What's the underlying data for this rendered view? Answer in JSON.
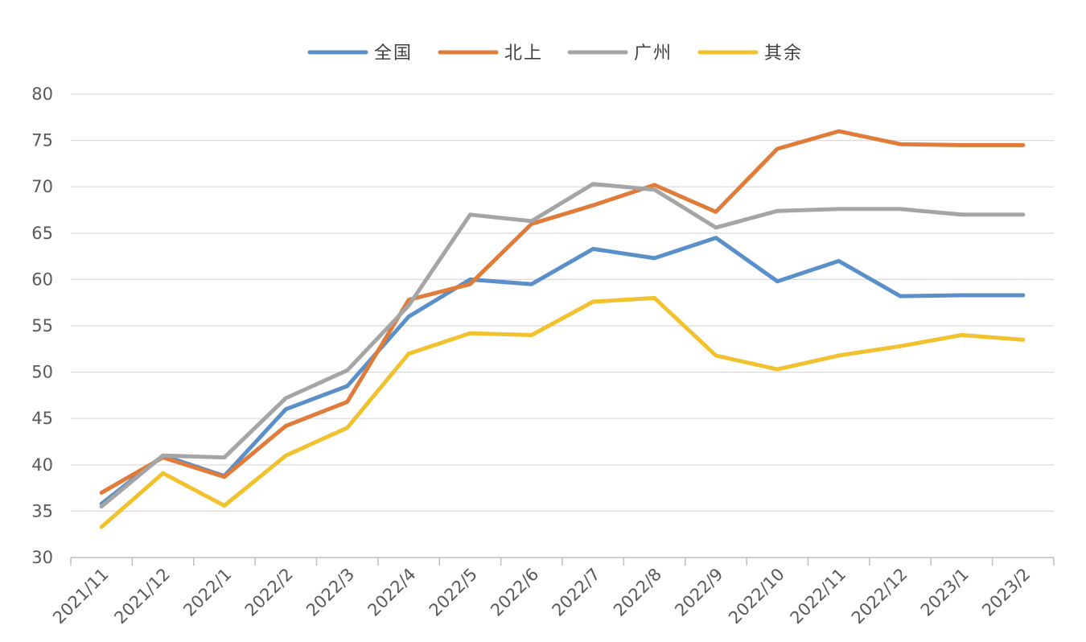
{
  "chart_data": {
    "type": "line",
    "title": "",
    "xlabel": "",
    "ylabel": "",
    "categories": [
      "2021/11",
      "2021/12",
      "2022/1",
      "2022/2",
      "2022/3",
      "2022/4",
      "2022/5",
      "2022/6",
      "2022/7",
      "2022/8",
      "2022/9",
      "2022/10",
      "2022/11",
      "2022/12",
      "2023/1",
      "2023/2"
    ],
    "ylim": [
      30,
      80
    ],
    "yticks": [
      "30",
      "35",
      "40",
      "45",
      "50",
      "55",
      "60",
      "65",
      "70",
      "75",
      "80"
    ],
    "grid": true,
    "legend_position": "top",
    "series": [
      {
        "name": "全国",
        "color": "#5B8FC9",
        "values": [
          35.8,
          41.0,
          38.8,
          46.0,
          48.5,
          56.0,
          60.0,
          59.5,
          63.3,
          62.3,
          64.5,
          59.8,
          62.0,
          58.2,
          58.3,
          58.3
        ]
      },
      {
        "name": "北上",
        "color": "#E07B39",
        "values": [
          37.0,
          40.8,
          38.7,
          44.2,
          46.8,
          57.8,
          59.5,
          66.0,
          68.0,
          70.2,
          67.3,
          74.1,
          76.0,
          74.6,
          74.5,
          74.5
        ]
      },
      {
        "name": "广州",
        "color": "#A5A5A5",
        "values": [
          35.5,
          41.0,
          40.8,
          47.2,
          50.2,
          57.2,
          67.0,
          66.3,
          70.3,
          69.7,
          65.6,
          67.4,
          67.6,
          67.6,
          67.0,
          67.0
        ]
      },
      {
        "name": "其余",
        "color": "#F2C12E",
        "values": [
          33.3,
          39.1,
          35.6,
          41.0,
          44.0,
          52.0,
          54.2,
          54.0,
          57.6,
          58.0,
          51.8,
          50.3,
          51.8,
          52.8,
          54.0,
          53.5
        ]
      }
    ]
  }
}
